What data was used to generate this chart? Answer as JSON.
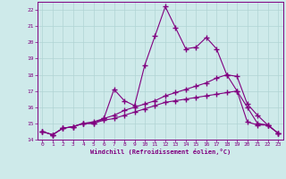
{
  "xlabel": "Windchill (Refroidissement éolien,°C)",
  "background_color": "#ceeaea",
  "line_color": "#800080",
  "grid_color": "#b0d4d4",
  "xlim": [
    -0.5,
    23.5
  ],
  "ylim": [
    14.0,
    22.5
  ],
  "yticks": [
    14,
    15,
    16,
    17,
    18,
    19,
    20,
    21,
    22
  ],
  "xticks": [
    0,
    1,
    2,
    3,
    4,
    5,
    6,
    7,
    8,
    9,
    10,
    11,
    12,
    13,
    14,
    15,
    16,
    17,
    18,
    19,
    20,
    21,
    22,
    23
  ],
  "series1_x": [
    0,
    1,
    2,
    3,
    4,
    5,
    6,
    7,
    8,
    9,
    10,
    11,
    12,
    13,
    14,
    15,
    16,
    17,
    18,
    19,
    20,
    21,
    22,
    23
  ],
  "series1_y": [
    14.5,
    14.3,
    14.7,
    14.8,
    15.0,
    15.1,
    15.3,
    17.1,
    16.4,
    16.1,
    18.6,
    20.4,
    22.2,
    20.9,
    19.6,
    19.7,
    20.3,
    19.6,
    18.0,
    17.0,
    15.1,
    14.9,
    14.9,
    14.4
  ],
  "series2_x": [
    0,
    1,
    2,
    3,
    4,
    5,
    6,
    7,
    8,
    9,
    10,
    11,
    12,
    13,
    14,
    15,
    16,
    17,
    18,
    19,
    20,
    21,
    22,
    23
  ],
  "series2_y": [
    14.5,
    14.3,
    14.7,
    14.8,
    15.0,
    15.0,
    15.3,
    15.5,
    15.8,
    16.0,
    16.2,
    16.4,
    16.7,
    16.9,
    17.1,
    17.3,
    17.5,
    17.8,
    18.0,
    17.9,
    16.2,
    15.5,
    14.9,
    14.4
  ],
  "series3_x": [
    0,
    1,
    2,
    3,
    4,
    5,
    6,
    7,
    8,
    9,
    10,
    11,
    12,
    13,
    14,
    15,
    16,
    17,
    18,
    19,
    20,
    21,
    22,
    23
  ],
  "series3_y": [
    14.5,
    14.3,
    14.7,
    14.8,
    15.0,
    15.0,
    15.2,
    15.3,
    15.5,
    15.7,
    15.9,
    16.1,
    16.3,
    16.4,
    16.5,
    16.6,
    16.7,
    16.8,
    16.9,
    17.0,
    16.0,
    15.0,
    14.9,
    14.4
  ]
}
